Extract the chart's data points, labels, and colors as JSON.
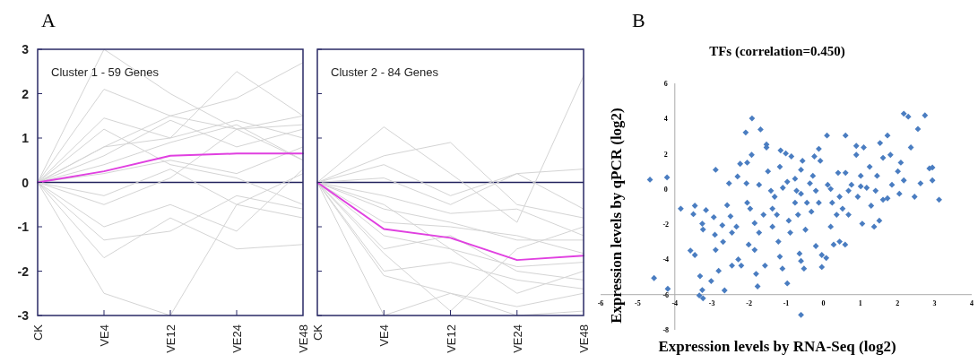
{
  "chart_data": [
    {
      "type": "line",
      "annotations": [
        "A",
        "Cluster 1 - 59 Genes"
      ],
      "categories": [
        "CK",
        "VE4",
        "VE12",
        "VE24",
        "VE48"
      ],
      "ylim": [
        -3,
        3
      ],
      "yticks": [
        -3,
        -2,
        -1,
        0,
        1,
        2,
        3
      ],
      "line_style": "solid",
      "ref_lines": [
        {
          "axis": "y",
          "value": 0,
          "color": "#22225e"
        }
      ],
      "series": [
        {
          "color": "#d4d4d4",
          "values": [
            0,
            3.0,
            2.0,
            1.2,
            1.5
          ]
        },
        {
          "color": "#d4d4d4",
          "values": [
            0,
            2.1,
            1.5,
            1.2,
            1.3
          ]
        },
        {
          "color": "#d4d4d4",
          "values": [
            0,
            1.45,
            1.0,
            2.5,
            1.5
          ]
        },
        {
          "color": "#d4d4d4",
          "values": [
            0,
            0.8,
            1.5,
            1.9,
            2.7
          ]
        },
        {
          "color": "#d4d4d4",
          "values": [
            0,
            0.8,
            1.0,
            1.4,
            1.0
          ]
        },
        {
          "color": "#d4d4d4",
          "values": [
            0,
            0.6,
            1.4,
            0.8,
            1.2
          ]
        },
        {
          "color": "#d4d4d4",
          "values": [
            0,
            0.4,
            0.9,
            1.3,
            0.5
          ]
        },
        {
          "color": "#d4d4d4",
          "values": [
            0,
            0.2,
            0.5,
            0.2,
            0.8
          ]
        },
        {
          "color": "#d4d4d4",
          "values": [
            0,
            -0.3,
            0.3,
            -0.5,
            0.2
          ]
        },
        {
          "color": "#d4d4d4",
          "values": [
            0,
            -0.5,
            0.1,
            1.2,
            0.5
          ]
        },
        {
          "color": "#d4d4d4",
          "values": [
            0,
            -1.0,
            -0.5,
            -1.1,
            0.3
          ]
        },
        {
          "color": "#d4d4d4",
          "values": [
            0,
            -1.3,
            -1.1,
            -0.3,
            -0.6
          ]
        },
        {
          "color": "#d4d4d4",
          "values": [
            0,
            -1.7,
            -0.8,
            -1.5,
            -1.4
          ]
        },
        {
          "color": "#d4d4d4",
          "values": [
            0,
            -2.5,
            -3.0,
            -0.5,
            -0.8
          ]
        },
        {
          "color": "#d4d4d4",
          "values": [
            0,
            1.2,
            0.4,
            0.1,
            -0.5
          ]
        },
        {
          "color": "#e040e0",
          "values": [
            0,
            0.25,
            0.6,
            0.65,
            0.65
          ]
        }
      ]
    },
    {
      "type": "line",
      "annotations": [
        "Cluster 2 - 84 Genes"
      ],
      "categories": [
        "CK",
        "VE4",
        "VE12",
        "VE24",
        "VE48"
      ],
      "ylim": [
        -3,
        3
      ],
      "yticks": [
        -3,
        -2,
        -1,
        0,
        1,
        2,
        3
      ],
      "tick_labels": "x",
      "line_style": "solid",
      "ref_lines": [
        {
          "axis": "y",
          "value": 0,
          "color": "#22225e"
        }
      ],
      "series": [
        {
          "color": "#d4d4d4",
          "values": [
            0,
            1.25,
            0.2,
            -0.9,
            2.4
          ]
        },
        {
          "color": "#d4d4d4",
          "values": [
            0,
            0.6,
            0.9,
            -0.5,
            -0.8
          ]
        },
        {
          "color": "#d4d4d4",
          "values": [
            0,
            0.4,
            -0.3,
            0.2,
            -0.6
          ]
        },
        {
          "color": "#d4d4d4",
          "values": [
            0,
            0.1,
            -0.5,
            0.2,
            0.3
          ]
        },
        {
          "color": "#d4d4d4",
          "values": [
            0,
            -0.3,
            -0.7,
            -0.6,
            -1.2
          ]
        },
        {
          "color": "#d4d4d4",
          "values": [
            0,
            -0.6,
            -0.9,
            -1.3,
            -1.3
          ]
        },
        {
          "color": "#d4d4d4",
          "values": [
            0,
            -0.9,
            -1.0,
            -1.2,
            -1.6
          ]
        },
        {
          "color": "#d4d4d4",
          "values": [
            0,
            -1.2,
            -1.5,
            -1.9,
            -1.8
          ]
        },
        {
          "color": "#d4d4d4",
          "values": [
            0,
            -1.5,
            -1.2,
            -2.0,
            -2.2
          ]
        },
        {
          "color": "#d4d4d4",
          "values": [
            0,
            -2.0,
            -1.8,
            -2.2,
            -2.4
          ]
        },
        {
          "color": "#d4d4d4",
          "values": [
            0,
            -2.1,
            -2.5,
            -2.8,
            -2.5
          ]
        },
        {
          "color": "#d4d4d4",
          "values": [
            0,
            -3.0,
            -2.5,
            -3.0,
            -2.9
          ]
        },
        {
          "color": "#d4d4d4",
          "values": [
            0,
            -1.6,
            -2.9,
            -1.5,
            -1.0
          ]
        },
        {
          "color": "#d4d4d4",
          "values": [
            0,
            -0.5,
            -1.5,
            -2.5,
            -2.0
          ]
        },
        {
          "color": "#e040e0",
          "values": [
            0,
            -1.05,
            -1.25,
            -1.75,
            -1.65
          ]
        }
      ]
    },
    {
      "type": "scatter",
      "annotations": [
        "B"
      ],
      "title": "TFs (correlation=0.450)",
      "xlabel": "Expression levels by RNA-Seq (log2)",
      "ylabel": "Expression levels by qPCR (log2)",
      "xlim": [
        -6,
        4
      ],
      "ylim": [
        -8,
        6
      ],
      "xticks": [
        -6,
        -5,
        -4,
        -3,
        -2,
        -1,
        0,
        1,
        2,
        3,
        4
      ],
      "yticks": [
        -8,
        -6,
        -4,
        -2,
        0,
        2,
        4,
        6
      ],
      "marker": "diamond",
      "series": [
        {
          "color": "#4a7dc1",
          "x": [
            -4.67,
            -4.21,
            -3.84,
            -3.46,
            -3.5,
            -3.16,
            -3.26,
            -3.24,
            -2.95,
            -2.9,
            -2.92,
            -2.72,
            -2.7,
            -3.58,
            -3.46,
            -2.9,
            -2.82,
            -3.32,
            -3.02,
            -4.56,
            -4.19,
            -3.34,
            -3.24,
            -3.26,
            -2.66,
            -2.54,
            -2.5,
            -2.59,
            -2.46,
            -2.34,
            -2.46,
            -2.29,
            -2.21,
            -2.24,
            -2.31,
            -2.09,
            -2.05,
            -2.07,
            -2.05,
            -1.97,
            -2.01,
            -1.93,
            -1.92,
            -1.85,
            -1.85,
            -1.81,
            -1.77,
            -1.69,
            -1.73,
            -1.73,
            -1.61,
            -1.57,
            -1.53,
            -1.53,
            -1.49,
            -1.41,
            -1.37,
            -1.37,
            -1.31,
            -1.17,
            -1.15,
            -1.21,
            -1.17,
            -1.1,
            -1.01,
            -0.97,
            -0.97,
            -0.89,
            -0.86,
            -0.76,
            -0.72,
            -0.68,
            -0.64,
            -0.6,
            -0.6,
            -0.52,
            -0.6,
            -0.56,
            -0.48,
            -0.36,
            -0.32,
            -0.24,
            -0.2,
            -0.12,
            -0.08,
            -0.04,
            -0.04,
            0.08,
            0.1,
            0.12,
            0.2,
            0.24,
            0.28,
            0.36,
            0.4,
            0.44,
            0.44,
            0.6,
            0.59,
            0.6,
            0.68,
            0.76,
            0.89,
            0.89,
            0.93,
            1.01,
            1.05,
            1.09,
            1.17,
            1.25,
            1.29,
            1.37,
            1.45,
            1.51,
            1.53,
            1.61,
            1.61,
            1.73,
            1.73,
            1.81,
            1.85,
            2.01,
            2.05,
            2.09,
            2.17,
            2.17,
            2.29,
            2.36,
            2.46,
            2.55,
            2.62,
            2.74,
            2.86,
            2.94,
            2.94,
            3.12,
            -1.09,
            -0.6,
            -0.2,
            0.2,
            0.68,
            1.01,
            -0.76,
            -0.28,
            -1.25,
            -0.93,
            -0.12,
            -0.44,
            0.52,
            1.41
          ],
          "values": [
            0.53,
            0.66,
            -1.12,
            -0.95,
            -1.43,
            -1.2,
            -1.97,
            -2.3,
            -1.6,
            1.09,
            -2.6,
            -2.06,
            -3.0,
            -3.5,
            -3.75,
            -3.46,
            -4.65,
            -4.95,
            -5.23,
            -5.06,
            -5.67,
            -6.05,
            -6.21,
            -5.74,
            -5.76,
            0.32,
            -1.55,
            -0.92,
            -2.48,
            -2.14,
            -4.35,
            -4.0,
            -4.35,
            1.43,
            0.71,
            3.21,
            1.5,
            0.32,
            -0.78,
            -1.12,
            -3.16,
            1.94,
            4.01,
            -1.94,
            -3.46,
            -4.82,
            -5.53,
            3.38,
            0.24,
            -2.48,
            -1.46,
            -4.35,
            2.53,
            2.36,
            1.0,
            -0.1,
            -1.12,
            -2.14,
            -0.44,
            1.26,
            2.19,
            -2.99,
            -3.84,
            -4.52,
            2.02,
            0.41,
            -5.36,
            -2.48,
            1.85,
            -0.78,
            -0.1,
            -1.46,
            -3.67,
            -4.09,
            -7.15,
            -4.52,
            1.09,
            1.6,
            -2.31,
            0.32,
            -1.29,
            1.85,
            -3.24,
            2.28,
            1.6,
            -3.75,
            -4.43,
            -3.92,
            3.04,
            0.24,
            -2.14,
            -0.78,
            -3.16,
            -1.46,
            0.92,
            -0.44,
            -2.99,
            3.04,
            -3.16,
            0.92,
            -1.46,
            0.24,
            1.94,
            2.45,
            -0.44,
            0.75,
            -1.97,
            2.36,
            0.07,
            1.26,
            -0.95,
            -2.14,
            0.75,
            -1.8,
            2.61,
            1.77,
            -0.61,
            3.04,
            -0.53,
            1.94,
            0.24,
            1.0,
            -0.27,
            1.5,
            4.28,
            0.49,
            4.11,
            2.36,
            -0.44,
            3.41,
            0.32,
            4.18,
            1.17,
            1.22,
            0.49,
            -0.61,
            0.07,
            -0.27,
            -0.1,
            0,
            -0.1,
            0.15,
            0.58,
            0.75,
            -1.46,
            -1.8,
            -0.78,
            -0.78,
            -1.12,
            -0.1
          ]
        }
      ]
    }
  ]
}
